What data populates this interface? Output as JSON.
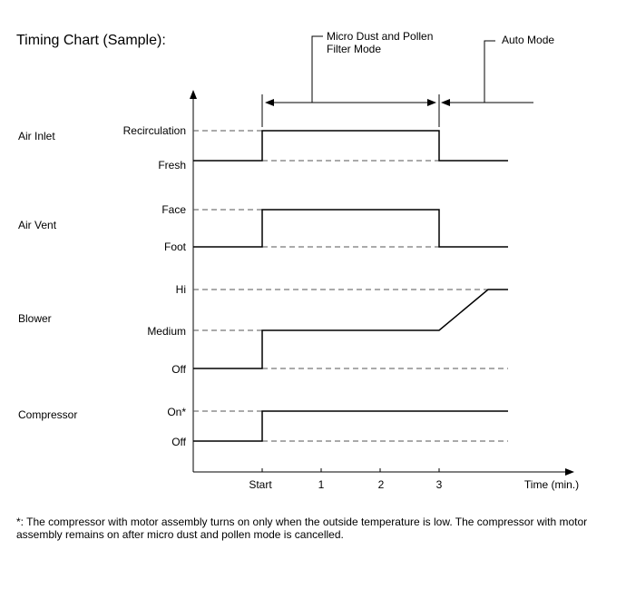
{
  "title": "Timing Chart (Sample):",
  "modes": {
    "micro_dust": [
      "Micro Dust and Pollen",
      "Filter Mode"
    ],
    "auto": "Auto Mode"
  },
  "rows": {
    "air_inlet": {
      "name": "Air Inlet",
      "levels": [
        "Recirculation",
        "Fresh"
      ]
    },
    "air_vent": {
      "name": "Air Vent",
      "levels": [
        "Face",
        "Foot"
      ]
    },
    "blower": {
      "name": "Blower",
      "levels": [
        "Hi",
        "Medium",
        "Off"
      ]
    },
    "compressor": {
      "name": "Compressor",
      "levels": [
        "On*",
        "Off"
      ]
    }
  },
  "time_axis": {
    "ticks": [
      "Start",
      "1",
      "2",
      "3"
    ],
    "label": "Time (min.)"
  },
  "footnote": "*: The compressor with motor assembly turns on only when the outside temperature is low. The compressor with motor assembly remains on after micro dust and pollen mode is cancelled."
}
